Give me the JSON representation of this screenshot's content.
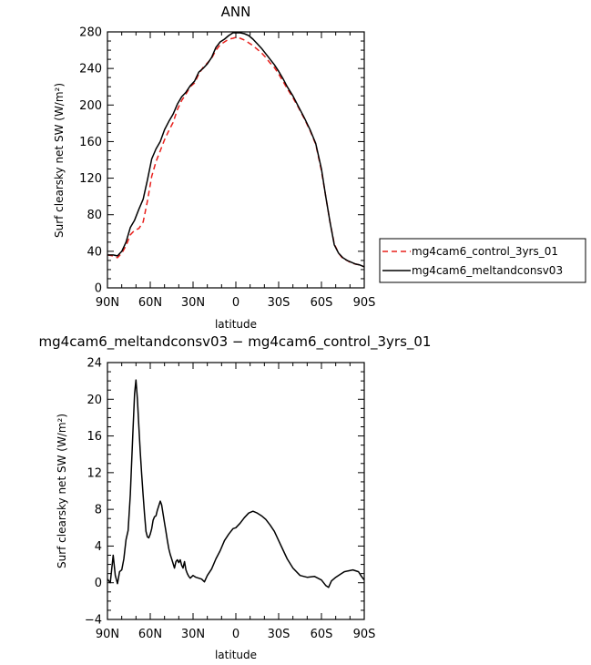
{
  "chart_data": [
    {
      "type": "line",
      "title": "ANN",
      "xlabel": "latitude",
      "ylabel": "Surf clearsky net SW (W/m²)",
      "xlim": [
        90,
        -90
      ],
      "ylim": [
        0,
        280
      ],
      "x_ticks": [
        90,
        60,
        30,
        0,
        -30,
        -60,
        -90
      ],
      "x_tick_labels": [
        "90N",
        "60N",
        "30N",
        "0",
        "30S",
        "60S",
        "90S"
      ],
      "y_ticks": [
        0,
        40,
        80,
        120,
        160,
        200,
        240,
        280
      ],
      "y_tick_labels": [
        "0",
        "40",
        "80",
        "120",
        "160",
        "200",
        "240",
        "280"
      ],
      "legend_position": "right",
      "series": [
        {
          "name": "mg4cam6_control_3yrs_01",
          "color": "#e8201c",
          "dash": "dashed",
          "x": [
            90,
            86,
            83,
            80,
            77,
            74,
            71,
            68,
            65,
            62,
            59,
            56,
            53,
            50,
            47,
            44,
            41,
            38,
            35,
            32,
            29,
            26,
            23,
            20,
            17,
            14,
            11,
            8,
            5,
            2,
            0,
            -3,
            -6,
            -9,
            -12,
            -15,
            -18,
            -21,
            -24,
            -27,
            -30,
            -33,
            -36,
            -40,
            -44,
            -48,
            -52,
            -56,
            -60,
            -63,
            -66,
            -69,
            -72,
            -75,
            -78,
            -81,
            -84,
            -87,
            -90
          ],
          "y": [
            36,
            35,
            33,
            38,
            46,
            58,
            63,
            65,
            72,
            95,
            122,
            138,
            150,
            162,
            172,
            181,
            195,
            205,
            212,
            220,
            224,
            234,
            241,
            246,
            251,
            260,
            266,
            269,
            272,
            273,
            274,
            273,
            271,
            268,
            265,
            261,
            257,
            252,
            246,
            241,
            234,
            226,
            218,
            208,
            197,
            185,
            172,
            157,
            128,
            100,
            72,
            48,
            38,
            32,
            30,
            27,
            26,
            25,
            23
          ]
        },
        {
          "name": "mg4cam6_meltandconsv03",
          "color": "#000000",
          "dash": "solid",
          "x": [
            90,
            86,
            83,
            80,
            77,
            74,
            71,
            68,
            65,
            62,
            59,
            56,
            53,
            50,
            47,
            44,
            41,
            38,
            35,
            32,
            29,
            26,
            23,
            20,
            17,
            14,
            11,
            8,
            5,
            2,
            0,
            -3,
            -6,
            -9,
            -12,
            -15,
            -18,
            -21,
            -24,
            -27,
            -30,
            -33,
            -36,
            -40,
            -44,
            -48,
            -52,
            -56,
            -60,
            -63,
            -66,
            -69,
            -72,
            -75,
            -78,
            -81,
            -84,
            -87,
            -90
          ],
          "y": [
            36,
            36,
            35,
            40,
            50,
            66,
            74,
            86,
            97,
            118,
            141,
            152,
            160,
            173,
            182,
            190,
            201,
            209,
            214,
            221,
            226,
            236,
            240,
            245,
            252,
            263,
            269,
            272,
            276,
            279,
            279,
            279,
            278,
            276,
            272,
            267,
            262,
            256,
            250,
            244,
            237,
            229,
            220,
            210,
            198,
            186,
            173,
            158,
            130,
            100,
            72,
            47,
            38,
            33,
            30,
            28,
            26,
            25,
            23
          ]
        }
      ]
    },
    {
      "type": "line",
      "title": "mg4cam6_meltandconsv03 − mg4cam6_control_3yrs_01",
      "xlabel": "latitude",
      "ylabel": "Surf clearsky net SW (W/m²)",
      "xlim": [
        90,
        -90
      ],
      "ylim": [
        -4,
        24
      ],
      "x_ticks": [
        90,
        60,
        30,
        0,
        -30,
        -60,
        -90
      ],
      "x_tick_labels": [
        "90N",
        "60N",
        "30N",
        "0",
        "30S",
        "60S",
        "90S"
      ],
      "y_ticks": [
        -4,
        0,
        4,
        8,
        12,
        16,
        20,
        24
      ],
      "y_tick_labels": [
        "−4",
        "0",
        "4",
        "8",
        "12",
        "16",
        "20",
        "24"
      ],
      "series": [
        {
          "color": "#000000",
          "dash": "solid",
          "x": [
            90,
            88,
            86,
            84.5,
            83,
            81.5,
            80,
            78.5,
            77,
            75.5,
            74,
            73,
            72,
            71,
            70,
            69,
            68,
            67,
            66,
            65,
            64,
            63,
            62,
            61,
            60,
            59,
            58,
            57,
            56,
            55,
            54,
            53,
            52,
            51,
            50,
            49,
            48,
            47,
            46,
            45,
            44,
            43,
            42,
            41,
            40,
            39,
            38,
            37,
            36,
            35,
            34,
            33,
            32,
            30,
            28,
            26,
            24,
            22,
            20,
            17,
            14,
            11,
            8,
            5,
            2,
            0,
            -3,
            -6,
            -9,
            -12,
            -15,
            -18,
            -21,
            -24,
            -27,
            -30,
            -33,
            -36,
            -40,
            -45,
            -50,
            -55,
            -60,
            -63,
            -65,
            -67,
            -70,
            -73,
            -76,
            -79,
            -82,
            -84,
            -86,
            -88,
            -90
          ],
          "y": [
            0.4,
            0,
            3.0,
            0.8,
            -0.1,
            1.2,
            1.4,
            2.6,
            4.7,
            5.7,
            9.6,
            13.2,
            17.0,
            20.6,
            22.1,
            20.0,
            17.0,
            14.3,
            11.8,
            9.5,
            7.5,
            5.6,
            5.0,
            4.9,
            5.3,
            5.9,
            6.8,
            7.2,
            7.3,
            7.9,
            8.4,
            8.9,
            8.5,
            7.5,
            6.5,
            5.6,
            4.6,
            3.7,
            3.1,
            2.6,
            2.1,
            1.6,
            2.3,
            2.5,
            2.2,
            2.5,
            1.9,
            1.6,
            2.3,
            1.4,
            1.0,
            0.7,
            0.5,
            0.8,
            0.6,
            0.5,
            0.4,
            0.1,
            0.8,
            1.5,
            2.6,
            3.5,
            4.6,
            5.3,
            5.9,
            6.0,
            6.5,
            7.1,
            7.6,
            7.8,
            7.6,
            7.3,
            6.9,
            6.3,
            5.6,
            4.6,
            3.6,
            2.6,
            1.6,
            0.8,
            0.6,
            0.7,
            0.3,
            -0.3,
            -0.5,
            0.2,
            0.6,
            0.9,
            1.2,
            1.3,
            1.4,
            1.3,
            1.2,
            0.7,
            0.3
          ]
        }
      ]
    }
  ]
}
